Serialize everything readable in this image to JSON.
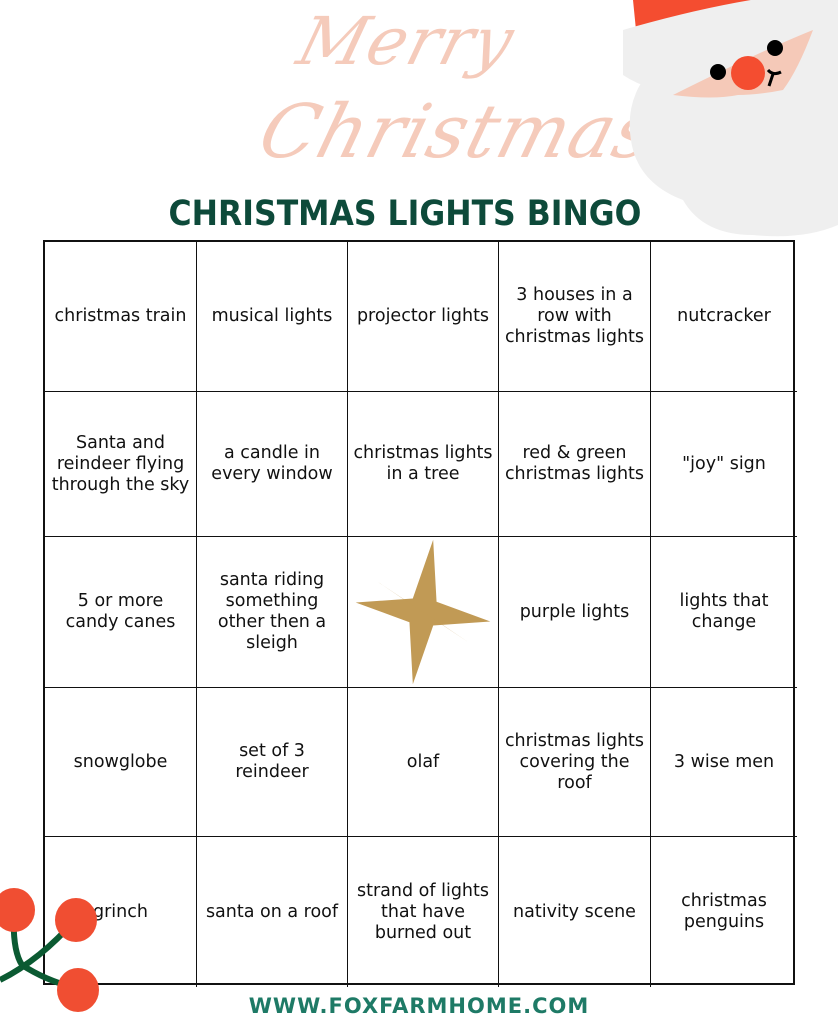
{
  "header": {
    "script_line1": "Merry",
    "script_line2": "Christmas",
    "title": "CHRISTMAS LIGHTS BINGO"
  },
  "colors": {
    "title": "#0d4a3a",
    "script": "#f5cbbb",
    "footer": "#1e7a66",
    "star": "#c19a55",
    "berry": "#f04e32",
    "stem": "#0b5a32"
  },
  "grid": {
    "cells": [
      "christmas train",
      "musical lights",
      "projector lights",
      "3 houses in a row with christmas lights",
      "nutcracker",
      "Santa and reindeer flying through the sky",
      "a candle in every window",
      "christmas lights in a tree",
      "red & green christmas lights",
      "\"joy\" sign",
      "5 or more candy canes",
      "santa riding something other then a sleigh",
      "",
      "purple lights",
      "lights that change",
      "snowglobe",
      "set of 3 reindeer",
      "olaf",
      "christmas lights covering the roof",
      "3 wise men",
      "grinch",
      "santa on a roof",
      "strand of lights that have burned out",
      "nativity scene",
      "christmas penguins"
    ],
    "free_space_icon": "star-icon"
  },
  "footer": {
    "url": "WWW.FOXFARMHOME.COM"
  },
  "decorations": [
    "santa-face-icon",
    "holly-berries-icon"
  ]
}
